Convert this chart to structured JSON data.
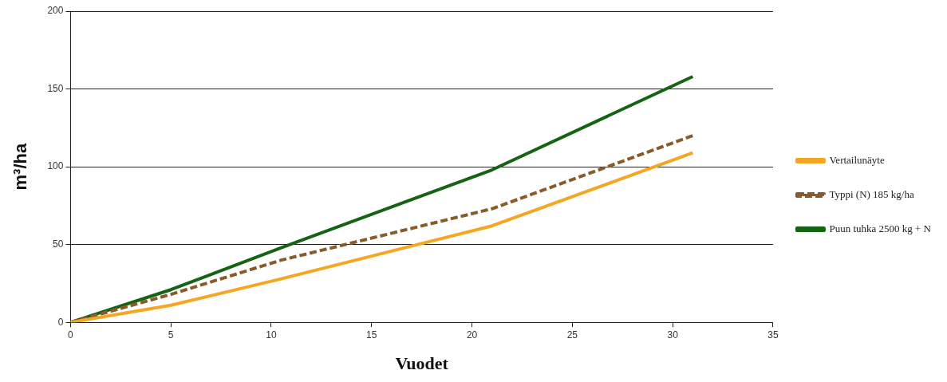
{
  "chart_data": {
    "type": "line",
    "xlabel": "Vuodet",
    "ylabel": "m³/ha",
    "x": [
      0,
      5,
      10.5,
      21,
      31
    ],
    "series": [
      {
        "name": "Vertailunäyte",
        "color": "#f5a623",
        "values": [
          0,
          11,
          28,
          62,
          109
        ],
        "line_style": "solid"
      },
      {
        "name": "Typpi (N) 185 kg/ha",
        "color": "#8b5a2b",
        "values": [
          0,
          18,
          40,
          73,
          120
        ],
        "line_style": "dashed"
      },
      {
        "name": "Puun tuhka 2500 kg + N",
        "color": "#146414",
        "values": [
          0,
          21,
          48,
          98,
          158
        ],
        "line_style": "solid"
      }
    ],
    "xlim": [
      0,
      35
    ],
    "xticks": [
      0,
      5,
      10,
      15,
      20,
      25,
      30,
      35
    ],
    "ylim": [
      0,
      200
    ],
    "yticks": [
      0,
      50,
      100,
      150,
      200
    ],
    "grid": "y",
    "legend": "right",
    "marker": "none"
  }
}
